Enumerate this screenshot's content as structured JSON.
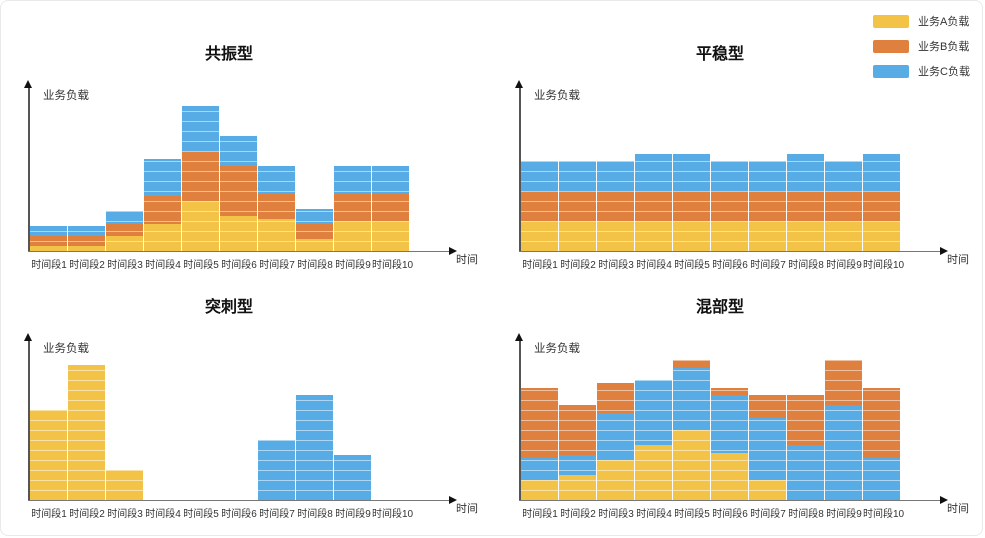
{
  "colors": {
    "A": "#F3C347",
    "B": "#DF803E",
    "C": "#58ACE6"
  },
  "brick_line_color": "rgba(255,255,255,0.5)",
  "legend": {
    "position": "top-right",
    "items": [
      {
        "key": "A",
        "label": "业务A负载",
        "color": "#F3C347"
      },
      {
        "key": "B",
        "label": "业务B负载",
        "color": "#DF803E"
      },
      {
        "key": "C",
        "label": "业务C负载",
        "color": "#58ACE6"
      }
    ]
  },
  "chart_data": [
    {
      "type": "bar",
      "stacked": true,
      "title": "共振型",
      "ylabel": "业务负载",
      "xlabel": "时间",
      "axis_ticks": "none",
      "value_unit": "brick-units (1 unit = one grid brick)",
      "categories": [
        "时间段1",
        "时间段2",
        "时间段3",
        "时间段4",
        "时间段5",
        "时间段6",
        "时间段7",
        "时间段8",
        "时间段9",
        "时间段10"
      ],
      "stack_order": [
        "A",
        "B",
        "C"
      ],
      "series": [
        {
          "key": "A",
          "name": "业务A负载",
          "values": [
            0.5,
            0.5,
            1.5,
            2.75,
            5,
            3.5,
            3.25,
            1.25,
            3,
            3
          ]
        },
        {
          "key": "B",
          "name": "业务B负载",
          "values": [
            1,
            1,
            1.25,
            2.75,
            5,
            5,
            2.5,
            1.5,
            2.75,
            2.75
          ]
        },
        {
          "key": "C",
          "name": "业务C负载",
          "values": [
            1,
            1,
            1.25,
            3.75,
            4.5,
            3,
            2.75,
            1.5,
            2.75,
            2.75
          ]
        }
      ]
    },
    {
      "type": "bar",
      "stacked": true,
      "title": "平稳型",
      "ylabel": "业务负载",
      "xlabel": "时间",
      "axis_ticks": "none",
      "value_unit": "brick-units (1 unit = one grid brick)",
      "categories": [
        "时间段1",
        "时间段2",
        "时间段3",
        "时间段4",
        "时间段5",
        "时间段6",
        "时间段7",
        "时间段8",
        "时间段9",
        "时间段10"
      ],
      "stack_order": [
        "A",
        "B",
        "C"
      ],
      "series": [
        {
          "key": "A",
          "name": "业务A负载",
          "values": [
            3,
            3,
            3,
            3,
            3,
            3,
            3,
            3,
            3,
            3
          ]
        },
        {
          "key": "B",
          "name": "业务B负载",
          "values": [
            3,
            3,
            3,
            3,
            3,
            3,
            3,
            3,
            3,
            3
          ]
        },
        {
          "key": "C",
          "name": "业务C负载",
          "values": [
            3,
            3,
            3,
            3.75,
            3.75,
            3,
            3,
            3.75,
            3,
            3.75
          ]
        }
      ]
    },
    {
      "type": "bar",
      "stacked": true,
      "title": "突刺型",
      "ylabel": "业务负载",
      "xlabel": "时间",
      "axis_ticks": "none",
      "value_unit": "brick-units (1 unit = one grid brick)",
      "categories": [
        "时间段1",
        "时间段2",
        "时间段3",
        "时间段4",
        "时间段5",
        "时间段6",
        "时间段7",
        "时间段8",
        "时间段9",
        "时间段10"
      ],
      "stack_order": [
        "A",
        "B",
        "C"
      ],
      "series": [
        {
          "key": "A",
          "name": "业务A负载",
          "values": [
            9,
            13.5,
            3,
            0,
            0,
            0,
            0,
            0,
            0,
            0
          ]
        },
        {
          "key": "B",
          "name": "业务B负载",
          "values": [
            0,
            0,
            0,
            0,
            0,
            0,
            0,
            0,
            0,
            0
          ]
        },
        {
          "key": "C",
          "name": "业务C负载",
          "values": [
            0,
            0,
            0,
            0,
            0,
            0,
            6,
            10.5,
            4.5,
            0
          ]
        }
      ]
    },
    {
      "type": "bar",
      "stacked": true,
      "title": "混部型",
      "ylabel": "业务负载",
      "xlabel": "时间",
      "axis_ticks": "none",
      "value_unit": "brick-units (1 unit = one grid brick)",
      "categories": [
        "时间段1",
        "时间段2",
        "时间段3",
        "时间段4",
        "时间段5",
        "时间段6",
        "时间段7",
        "时间段8",
        "时间段9",
        "时间段10"
      ],
      "stack_order": [
        "A",
        "C",
        "B"
      ],
      "series": [
        {
          "key": "A",
          "name": "业务A负载",
          "values": [
            2,
            2.5,
            4,
            5.5,
            7,
            4.75,
            2,
            0,
            0,
            0
          ]
        },
        {
          "key": "B",
          "name": "业务B负载",
          "values": [
            7,
            5,
            3,
            0,
            0.75,
            0.75,
            2.25,
            5,
            4.5,
            7
          ]
        },
        {
          "key": "C",
          "name": "业务C负载",
          "values": [
            2.25,
            2,
            4.75,
            6.5,
            6.25,
            5.75,
            6.25,
            5.5,
            9.5,
            4.25
          ]
        }
      ]
    }
  ]
}
